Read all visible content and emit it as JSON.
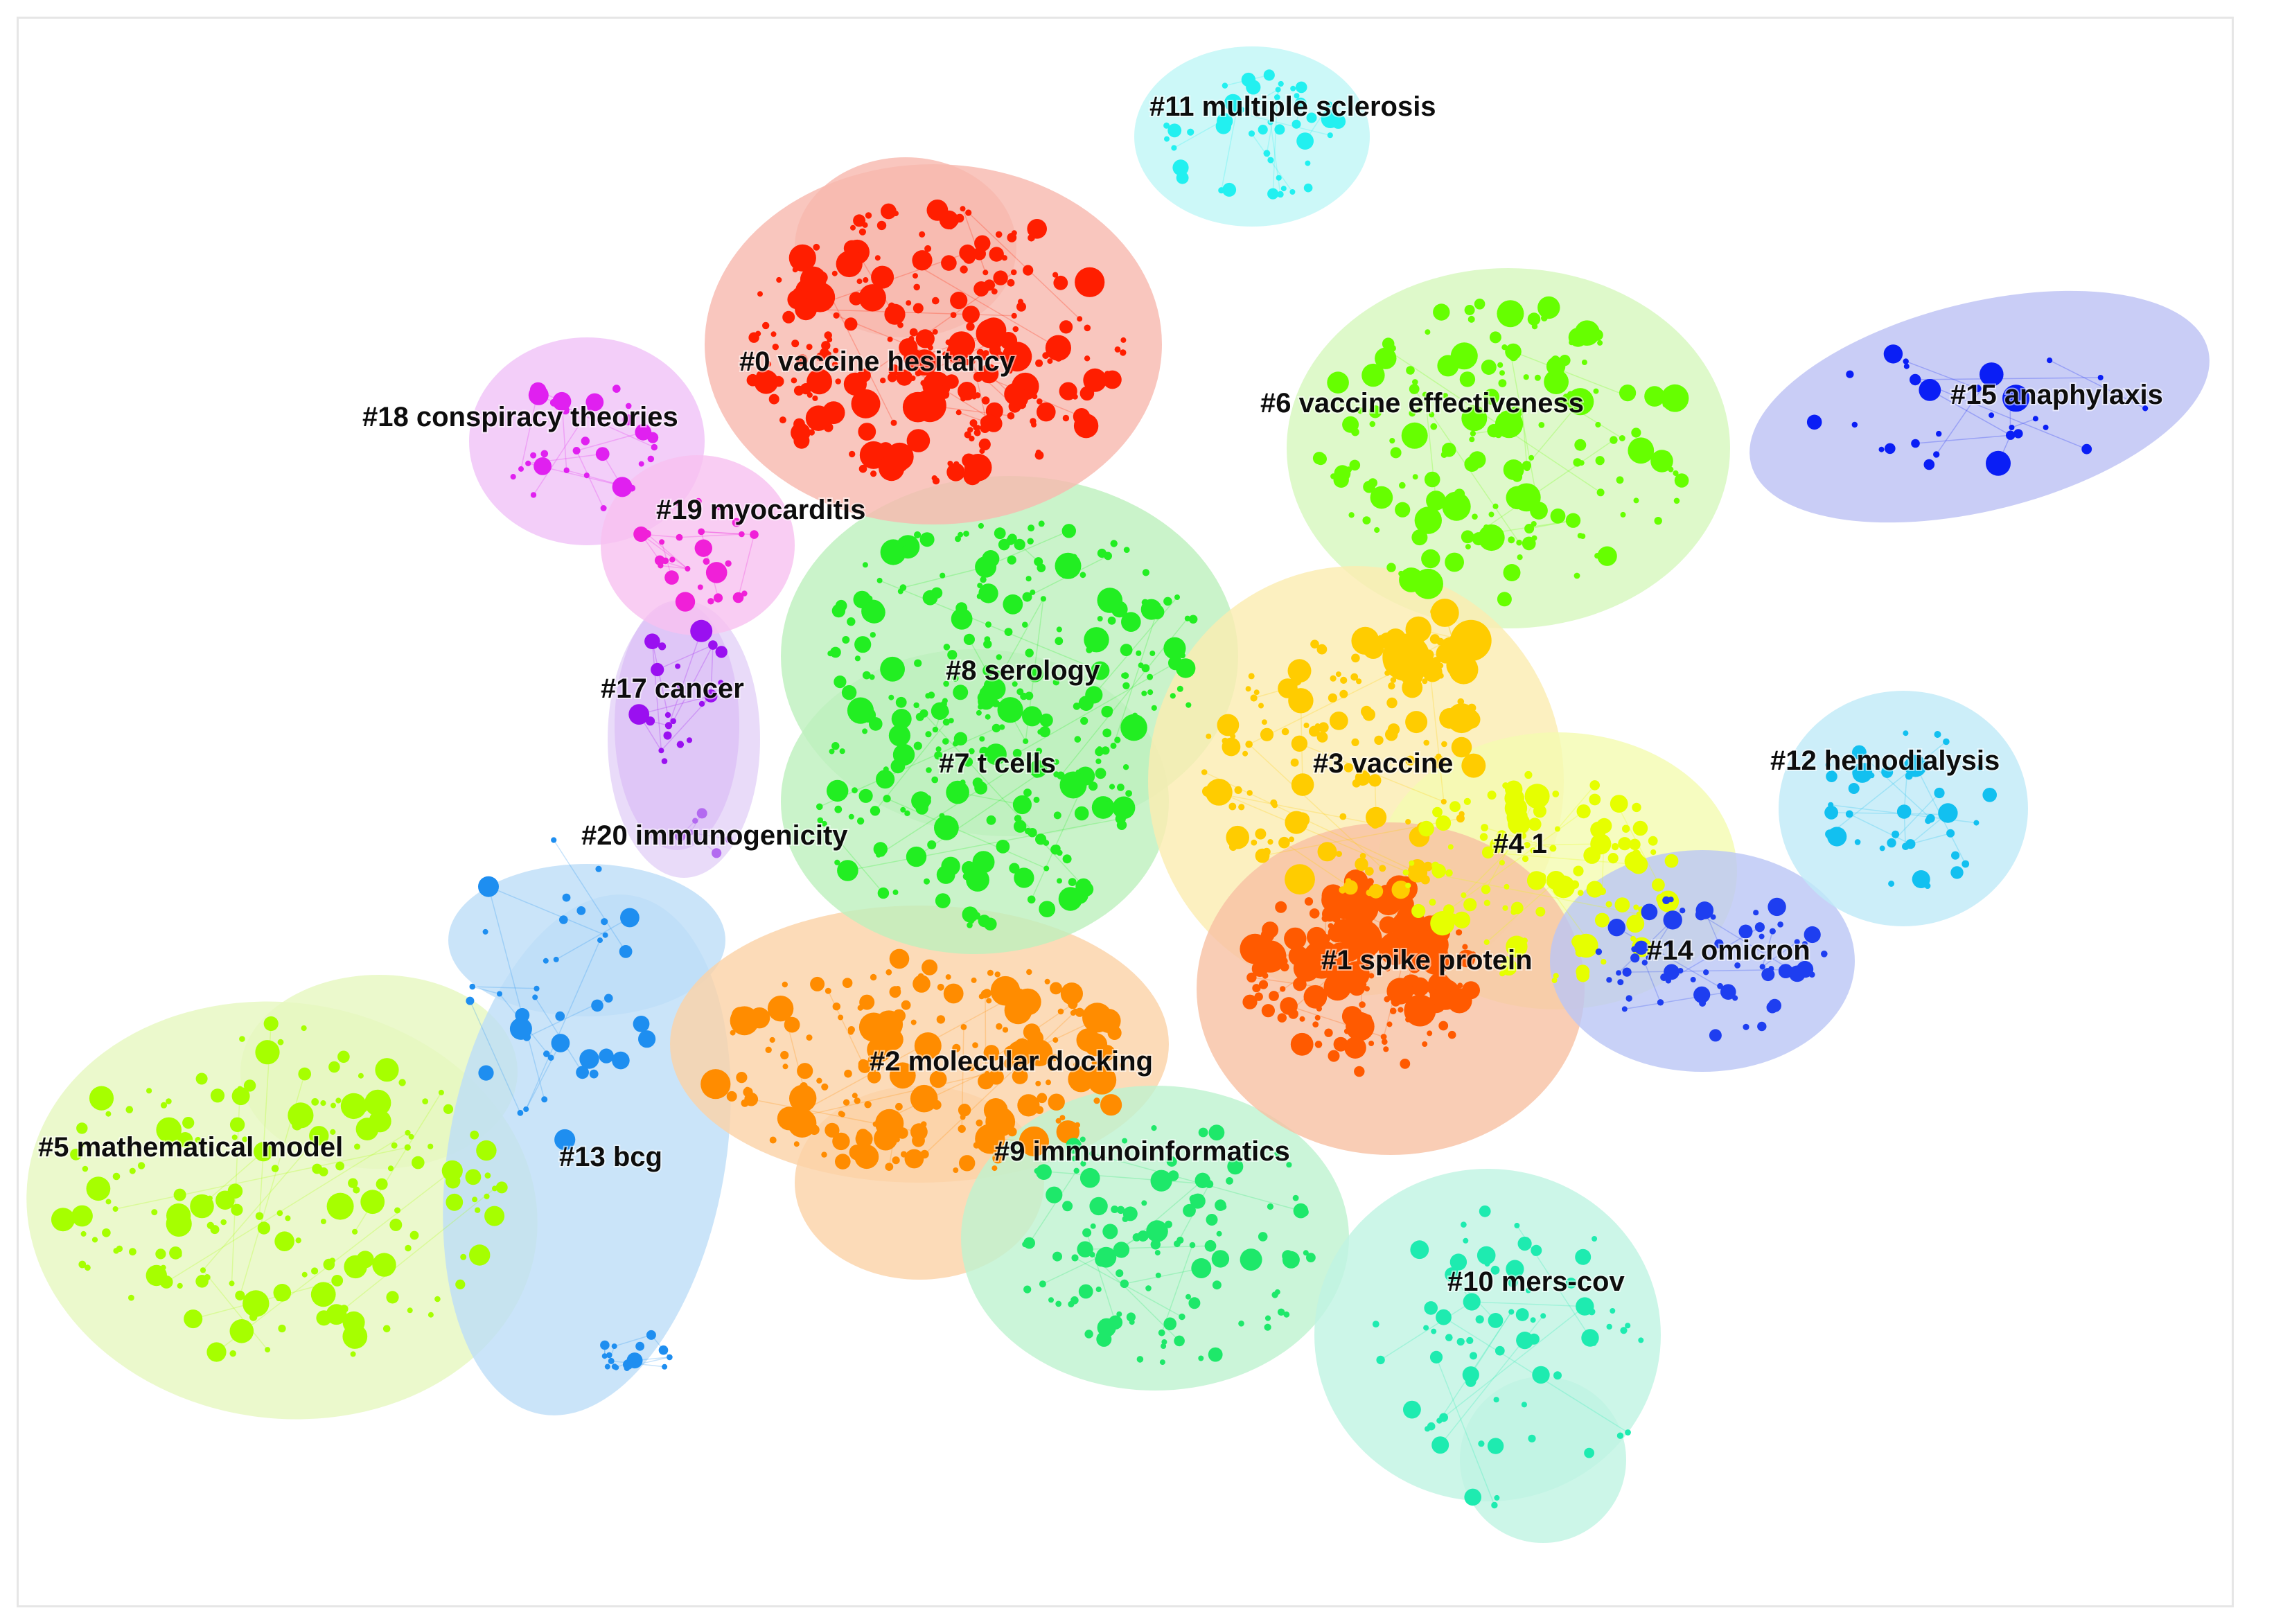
{
  "clusters": [
    {
      "id": "c0",
      "label": "#0 vaccine hesitancy",
      "color": "#ff1e00",
      "hull": "#f8b8ae"
    },
    {
      "id": "c1",
      "label": "#1 spike protein",
      "color": "#ff5a00",
      "hull": "#f8c0a2"
    },
    {
      "id": "c2",
      "label": "#2 molecular docking",
      "color": "#ff8c00",
      "hull": "#fbd2a6"
    },
    {
      "id": "c3",
      "label": "#3 vaccine",
      "color": "#ffcc00",
      "hull": "#fbecb0"
    },
    {
      "id": "c4",
      "label": "#4 1",
      "color": "#e6ff00",
      "hull": "#f4fbb0"
    },
    {
      "id": "c5",
      "label": "#5 mathematical model",
      "color": "#a6ff00",
      "hull": "#e6f8bf"
    },
    {
      "id": "c6",
      "label": "#6 vaccine effectiveness",
      "color": "#66ff00",
      "hull": "#d6f7bd"
    },
    {
      "id": "c7",
      "label": "#7 t cells",
      "color": "#22ee22",
      "hull": "#bdf0bd"
    },
    {
      "id": "c8",
      "label": "#8 serology",
      "color": "#22ee22",
      "hull": "#bdf0bd"
    },
    {
      "id": "c9",
      "label": "#9 immunoinformatics",
      "color": "#1ee86a",
      "hull": "#bef2cf"
    },
    {
      "id": "c10",
      "label": "#10 mers-cov",
      "color": "#1eebb0",
      "hull": "#bff4e2"
    },
    {
      "id": "c11",
      "label": "#11 multiple sclerosis",
      "color": "#22f0f0",
      "hull": "#bff6f6"
    },
    {
      "id": "c12",
      "label": "#12 hemodialysis",
      "color": "#12c0f0",
      "hull": "#bfeaf8"
    },
    {
      "id": "c13",
      "label": "#13 bcg",
      "color": "#1e8ef0",
      "hull": "#bdddf7"
    },
    {
      "id": "c14",
      "label": "#14 omicron",
      "color": "#1e3ef0",
      "hull": "#bac6f5"
    },
    {
      "id": "c15",
      "label": "#15 anaphylaxis",
      "color": "#0a1ef5",
      "hull": "#bcc0f4"
    },
    {
      "id": "c17",
      "label": "#17 cancer",
      "color": "#9a10f0",
      "hull": "#dcc0f6"
    },
    {
      "id": "c18",
      "label": "#18 conspiracy theories",
      "color": "#e020f0",
      "hull": "#f0c2f7"
    },
    {
      "id": "c19",
      "label": "#19 myocarditis",
      "color": "#f020d8",
      "hull": "#f8c0f0"
    },
    {
      "id": "c20",
      "label": "#20 immunogenicity",
      "color": "#b36af0",
      "hull": "#e4d2f8"
    }
  ]
}
